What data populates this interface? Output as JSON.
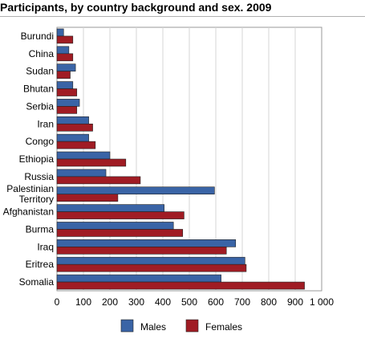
{
  "chart_data": {
    "type": "bar",
    "orientation": "horizontal",
    "title": "Participants, by country background and sex. 2009",
    "categories": [
      [
        "Burundi"
      ],
      [
        "China"
      ],
      [
        "Sudan"
      ],
      [
        "Bhutan"
      ],
      [
        "Serbia"
      ],
      [
        "Iran"
      ],
      [
        "Congo"
      ],
      [
        "Ethiopia"
      ],
      [
        "Russia"
      ],
      [
        "Palestinian",
        "Territory"
      ],
      [
        "Afghanistan"
      ],
      [
        "Burma"
      ],
      [
        "Iraq"
      ],
      [
        "Eritrea"
      ],
      [
        "Somalia"
      ]
    ],
    "series": [
      {
        "name": "Males",
        "color": "#3a64a6",
        "values": [
          25,
          45,
          70,
          60,
          85,
          120,
          120,
          200,
          185,
          595,
          405,
          440,
          675,
          710,
          620
        ]
      },
      {
        "name": "Females",
        "color": "#a01c24",
        "values": [
          60,
          60,
          50,
          75,
          75,
          135,
          145,
          260,
          315,
          230,
          480,
          475,
          640,
          715,
          935
        ]
      }
    ],
    "xlim": [
      0,
      1000
    ],
    "xticks": [
      "0",
      "100",
      "200",
      "300",
      "400",
      "500",
      "600",
      "700",
      "800",
      "900",
      "1 000"
    ],
    "grid": true,
    "legend_position": "bottom"
  }
}
